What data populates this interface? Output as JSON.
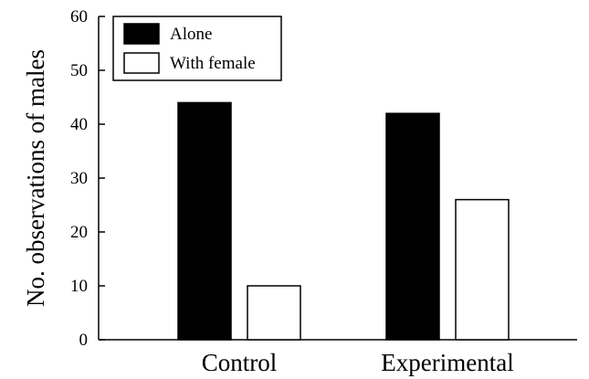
{
  "chart_data": {
    "type": "bar",
    "categories": [
      "Control",
      "Experimental"
    ],
    "series": [
      {
        "name": "Alone",
        "values": [
          44,
          42
        ],
        "color": "#000000"
      },
      {
        "name": "With female",
        "values": [
          10,
          26
        ],
        "color": "#ffffff"
      }
    ],
    "title": "",
    "xlabel": "",
    "ylabel": "No. observations of males",
    "ylim": [
      0,
      60
    ],
    "yticks": [
      0,
      10,
      20,
      30,
      40,
      50,
      60
    ],
    "grid": false,
    "legend_position": "top-left"
  }
}
